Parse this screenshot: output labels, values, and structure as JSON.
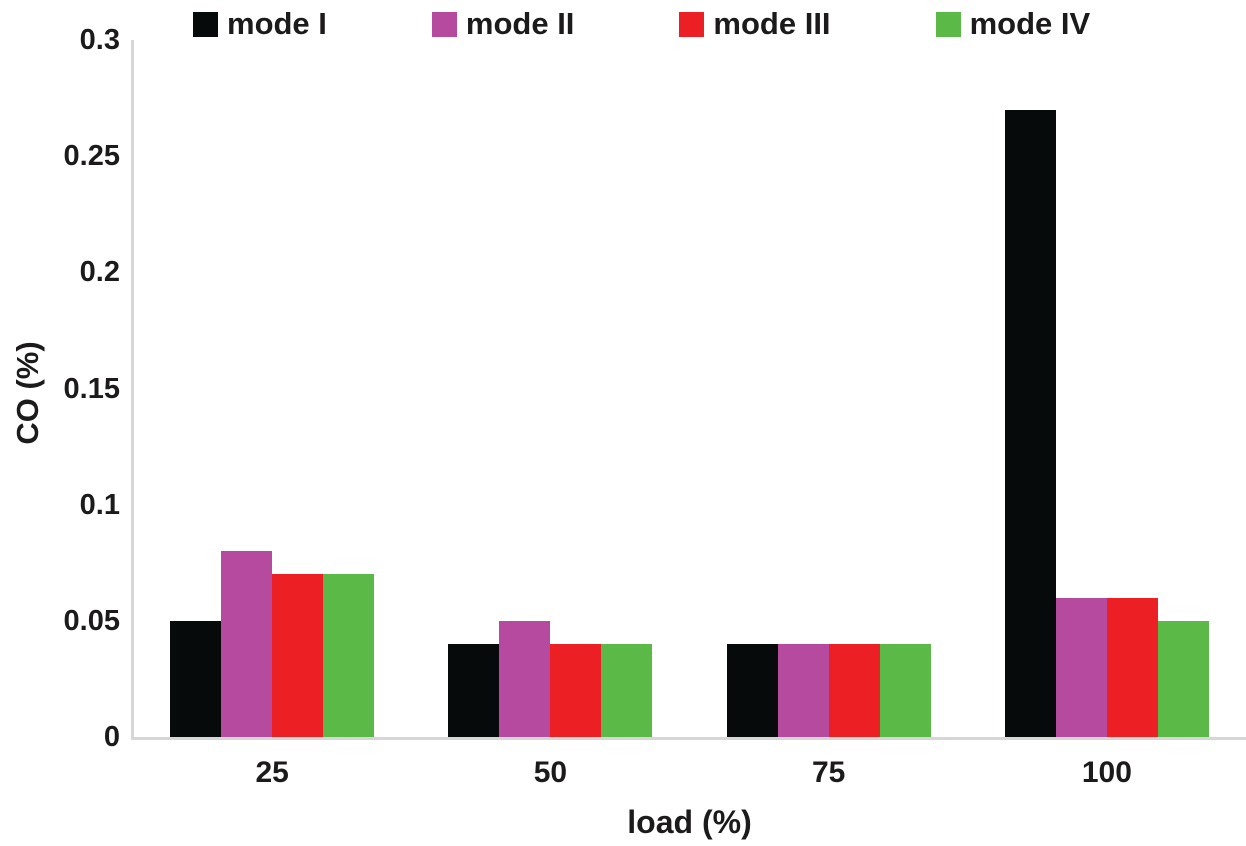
{
  "chart_data": {
    "type": "bar",
    "title": "",
    "xlabel": "load (%)",
    "ylabel": "CO (%)",
    "categories": [
      "25",
      "50",
      "75",
      "100"
    ],
    "series": [
      {
        "name": "mode I",
        "color": "#070a0a",
        "values": [
          0.05,
          0.04,
          0.04,
          0.27
        ]
      },
      {
        "name": "mode II",
        "color": "#b54a9e",
        "values": [
          0.08,
          0.05,
          0.04,
          0.06
        ]
      },
      {
        "name": "mode III",
        "color": "#ec2024",
        "values": [
          0.07,
          0.04,
          0.04,
          0.06
        ]
      },
      {
        "name": "mode IV",
        "color": "#5bb947",
        "values": [
          0.07,
          0.04,
          0.04,
          0.05
        ]
      }
    ],
    "ylim": [
      0,
      0.3
    ],
    "yticks": [
      0,
      0.05,
      0.1,
      0.15,
      0.2,
      0.25,
      0.3
    ],
    "ytick_labels": [
      "0",
      "0.05",
      "0.1",
      "0.15",
      "0.2",
      "0.25",
      "0.3"
    ],
    "grid": false,
    "legend_position": "top",
    "axis_line_color": "#d6d6d6",
    "text_color": "#1c1a1b"
  }
}
